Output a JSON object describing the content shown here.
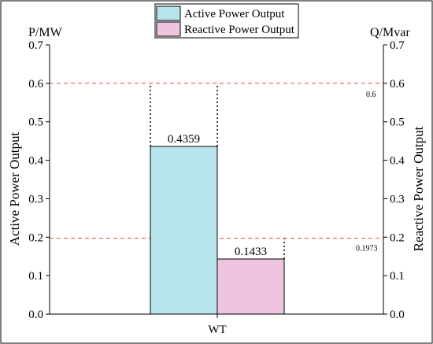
{
  "chart_data": {
    "type": "bar",
    "categories": [
      "WT"
    ],
    "series": [
      {
        "name": "Active Power Output",
        "values": [
          0.4359
        ],
        "axis": "left",
        "color": "#b7e4ea"
      },
      {
        "name": "Reactive Power Output",
        "values": [
          0.1433
        ],
        "axis": "right",
        "color": "#efc4e1"
      }
    ],
    "data_labels": [
      "0.4359",
      "0.1433"
    ],
    "ylabel_left": "Active Power Output",
    "ylabel_right": "Reactive Power Output",
    "unit_left": "P/MW",
    "unit_right": "Q/Mvar",
    "ylim": [
      0,
      0.7
    ],
    "yticks": [
      "0.0",
      "0.1",
      "0.2",
      "0.3",
      "0.4",
      "0.5",
      "0.6",
      "0.7"
    ],
    "limits": [
      {
        "value": 0.6,
        "label": "0.6",
        "color": "#e8474a"
      },
      {
        "value": 0.1973,
        "label": "0.1973",
        "color": "#e8474a"
      }
    ],
    "legend_position": "top-center",
    "grid": false
  }
}
